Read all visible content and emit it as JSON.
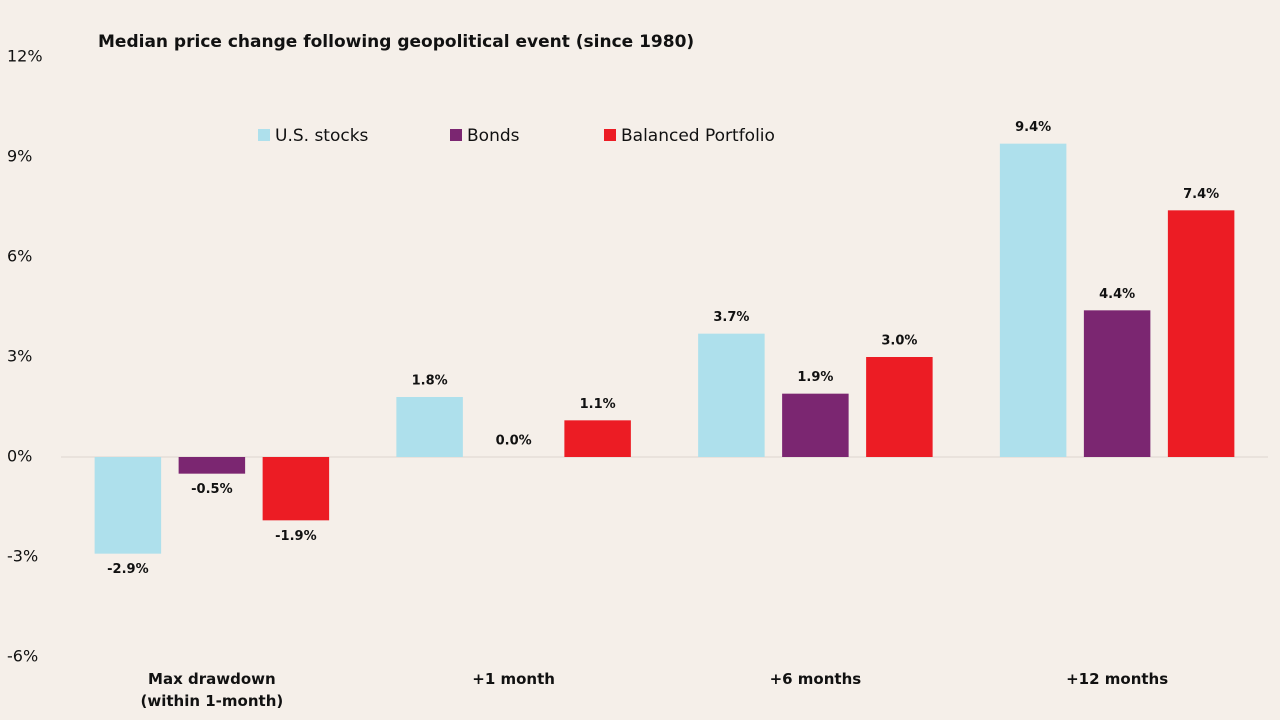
{
  "chart_data": {
    "type": "bar",
    "title": "Median price change following geopolitical event (since 1980)",
    "categories": [
      "Max drawdown (within 1-month)",
      "+1 month",
      "+6 months",
      "+12 months"
    ],
    "series": [
      {
        "name": "U.S. stocks",
        "color": "#aee0ec",
        "values": [
          -2.9,
          1.8,
          3.7,
          9.4
        ],
        "value_labels": [
          "-2.9%",
          "1.8%",
          "3.7%",
          "9.4%"
        ]
      },
      {
        "name": "Bonds",
        "color": "#7b2671",
        "values": [
          -0.5,
          0.0,
          1.9,
          4.4
        ],
        "value_labels": [
          "-0.5%",
          "0.0%",
          "1.9%",
          "4.4%"
        ]
      },
      {
        "name": "Balanced Portfolio",
        "color": "#ec1c24",
        "values": [
          -1.9,
          1.1,
          3.0,
          7.4
        ],
        "value_labels": [
          "-1.9%",
          "1.1%",
          "3.0%",
          "7.4%"
        ]
      }
    ],
    "ylim": [
      -6,
      12
    ],
    "yticks": [
      {
        "value": -6,
        "label": "-6%"
      },
      {
        "value": -3,
        "label": "-3%"
      },
      {
        "value": 0,
        "label": "0%"
      },
      {
        "value": 3,
        "label": "3%"
      },
      {
        "value": 6,
        "label": "6%"
      },
      {
        "value": 9,
        "label": "9%"
      },
      {
        "value": 12,
        "label": "12%"
      }
    ],
    "grid": false
  }
}
